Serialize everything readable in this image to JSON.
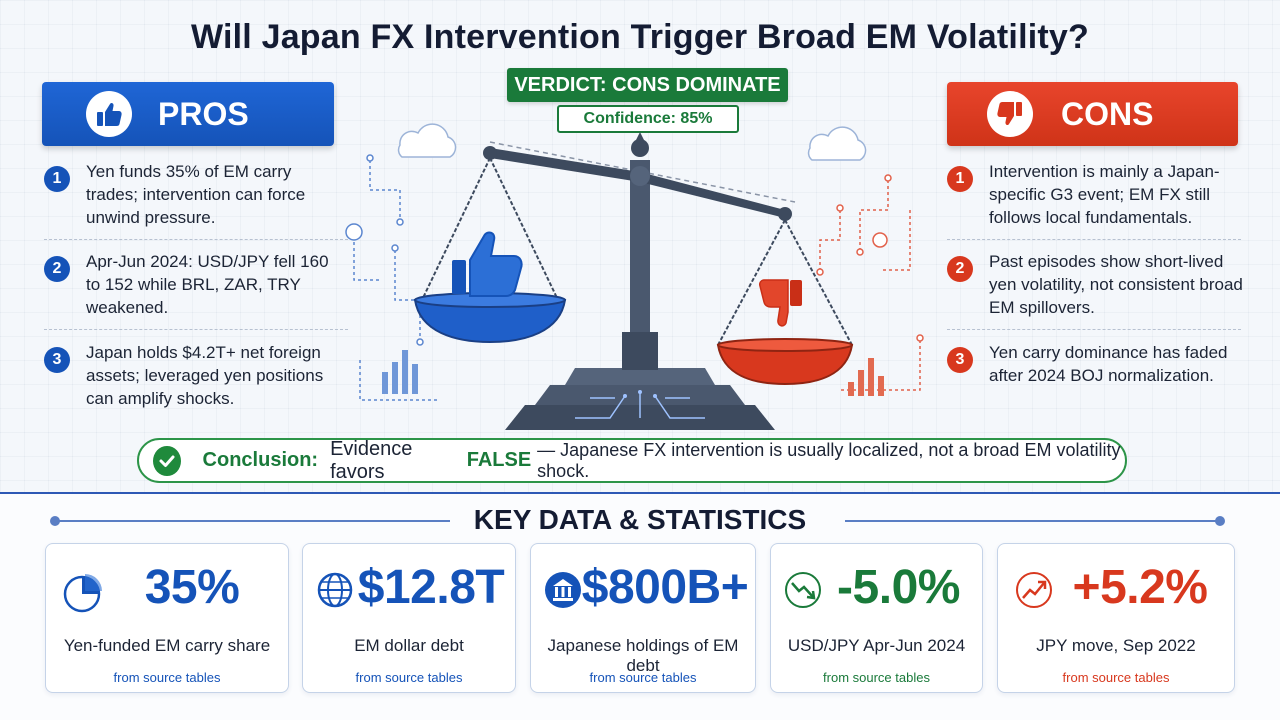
{
  "title": "Will Japan FX Intervention Trigger Broad EM Volatility?",
  "verdict": "VERDICT: CONS DOMINATE",
  "confidence": "Confidence: 85%",
  "pros": {
    "header": "PROS",
    "icon": "thumbs-up-icon",
    "items": [
      {
        "num": "1",
        "text": "Yen funds 35% of EM carry trades; intervention can force unwind pressure."
      },
      {
        "num": "2",
        "text": "Apr-Jun 2024: USD/JPY fell 160 to 152 while BRL, ZAR, TRY weakened."
      },
      {
        "num": "3",
        "text": "Japan holds $4.2T+ net foreign assets; leveraged yen positions can amplify shocks."
      }
    ]
  },
  "cons": {
    "header": "CONS",
    "icon": "thumbs-down-icon",
    "items": [
      {
        "num": "1",
        "text": "Intervention is mainly a Japan-specific G3 event; EM FX still follows local fundamentals."
      },
      {
        "num": "2",
        "text": "Past episodes show short-lived yen volatility, not consistent broad EM spillovers."
      },
      {
        "num": "3",
        "text": "Yen carry dominance has faded after 2024 BOJ normalization."
      }
    ]
  },
  "conclusion": {
    "label": "Conclusion:",
    "pre": "Evidence favors",
    "highlight": "FALSE",
    "post": "— Japanese FX intervention is usually localized, not a broad EM volatility shock."
  },
  "key_title": "KEY DATA & STATISTICS",
  "stats": [
    {
      "icon": "pie-chart-icon",
      "value": "35%",
      "label": "Yen-funded EM carry share",
      "source": "from source tables",
      "color": "#1553b8"
    },
    {
      "icon": "globe-icon",
      "value": "$12.8T",
      "label": "EM dollar debt",
      "source": "from source tables",
      "color": "#1553b8"
    },
    {
      "icon": "bank-icon",
      "value": "$800B+",
      "label": "Japanese holdings of EM debt",
      "source": "from source tables",
      "color": "#1553b8"
    },
    {
      "icon": "trend-down-icon",
      "value": "-5.0%",
      "label": "USD/JPY Apr-Jun 2024",
      "source": "from source tables",
      "color": "#1a7a3a"
    },
    {
      "icon": "trend-up-icon",
      "value": "+5.2%",
      "label": "JPY move, Sep 2022",
      "source": "from source tables",
      "color": "#d8381e"
    }
  ],
  "colors": {
    "pros": "#1553b8",
    "cons": "#d8381e",
    "verdict": "#1a7a3a"
  }
}
